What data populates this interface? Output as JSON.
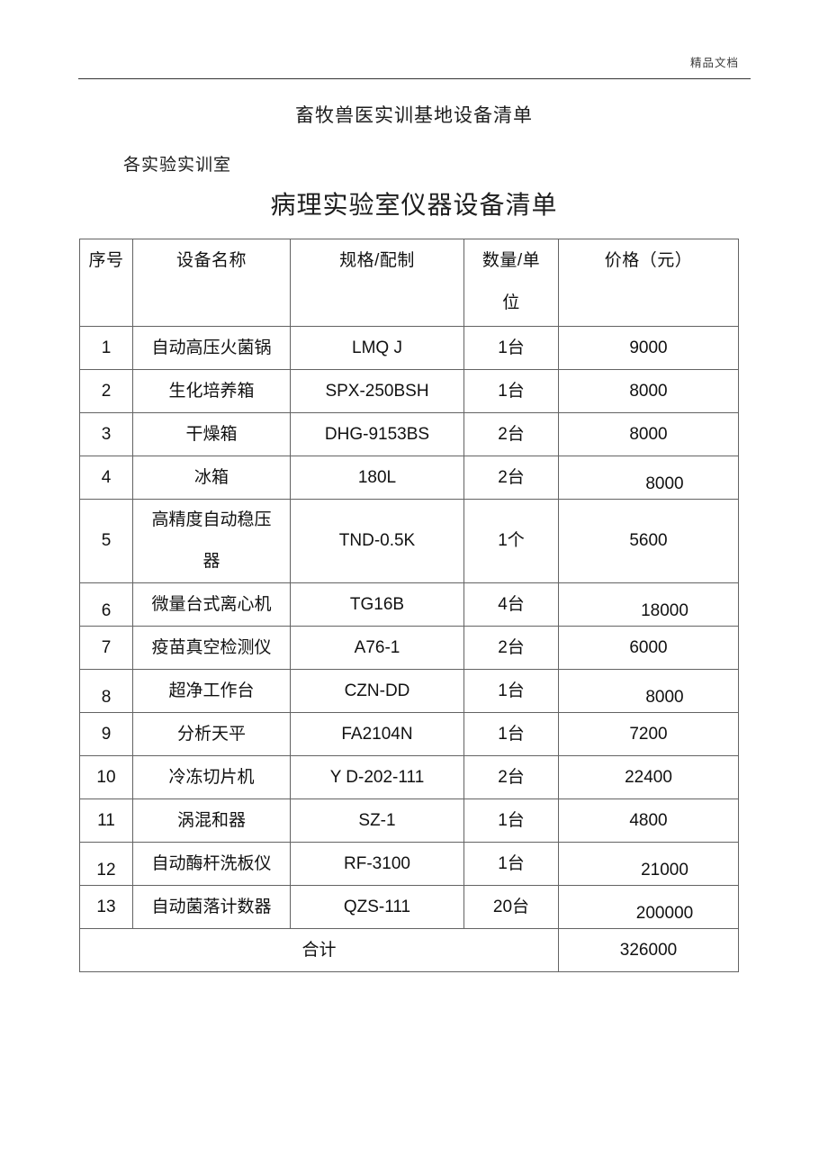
{
  "page": {
    "watermark": "精品文档",
    "doc_title": "畜牧兽医实训基地设备清单",
    "section_label": "各实验实训室",
    "table_title": "病理实验室仪器设备清单"
  },
  "table": {
    "headers": [
      "序号",
      "设备名称",
      "规格/配制",
      "数量/单\n位",
      "价格（元）"
    ],
    "rows": [
      {
        "no": "1",
        "name": "自动高压火菌锅",
        "spec": "LMQ J",
        "qty": "1台",
        "price": "9000"
      },
      {
        "no": "2",
        "name": "生化培养箱",
        "spec": "SPX-250BSH",
        "qty": "1台",
        "price": "8000"
      },
      {
        "no": "3",
        "name": "干燥箱",
        "spec": "DHG-9153BS",
        "qty": "2台",
        "price": "8000"
      },
      {
        "no": "4",
        "name": "冰箱",
        "spec": "180L",
        "qty": "2台",
        "price": "8000",
        "price_low": true
      },
      {
        "no": "5",
        "name": "高精度自动稳压\n器",
        "spec": "TND-0.5K",
        "qty": "1个",
        "price": "5600"
      },
      {
        "no": "6",
        "name": "微量台式离心机",
        "spec": "TG16B",
        "qty": "4台",
        "price": "18000",
        "price_low": true,
        "no_low": true
      },
      {
        "no": "7",
        "name": "疫苗真空检测仪",
        "spec": "A76-1",
        "qty": "2台",
        "price": "6000"
      },
      {
        "no": "8",
        "name": "超净工作台",
        "spec": "CZN-DD",
        "qty": "1台",
        "price": "8000",
        "price_low": true,
        "no_low": true
      },
      {
        "no": "9",
        "name": "分析天平",
        "spec": "FA2104N",
        "qty": "1台",
        "price": "7200"
      },
      {
        "no": "10",
        "name": "冷冻切片机",
        "spec": "Y D-202-111",
        "qty": "2台",
        "price": "22400"
      },
      {
        "no": "11",
        "name": "涡混和器",
        "spec": "SZ-1",
        "qty": "1台",
        "price": "4800"
      },
      {
        "no": "12",
        "name": "自动酶杆洗板仪",
        "spec": "RF-3100",
        "qty": "1台",
        "price": "21000",
        "price_low": true,
        "no_low": true
      },
      {
        "no": "13",
        "name": "自动菌落计数器",
        "spec": "QZS-111",
        "qty": "20台",
        "price": "200000",
        "price_low": true
      }
    ],
    "total_label": "合计",
    "total_price": "326000"
  }
}
